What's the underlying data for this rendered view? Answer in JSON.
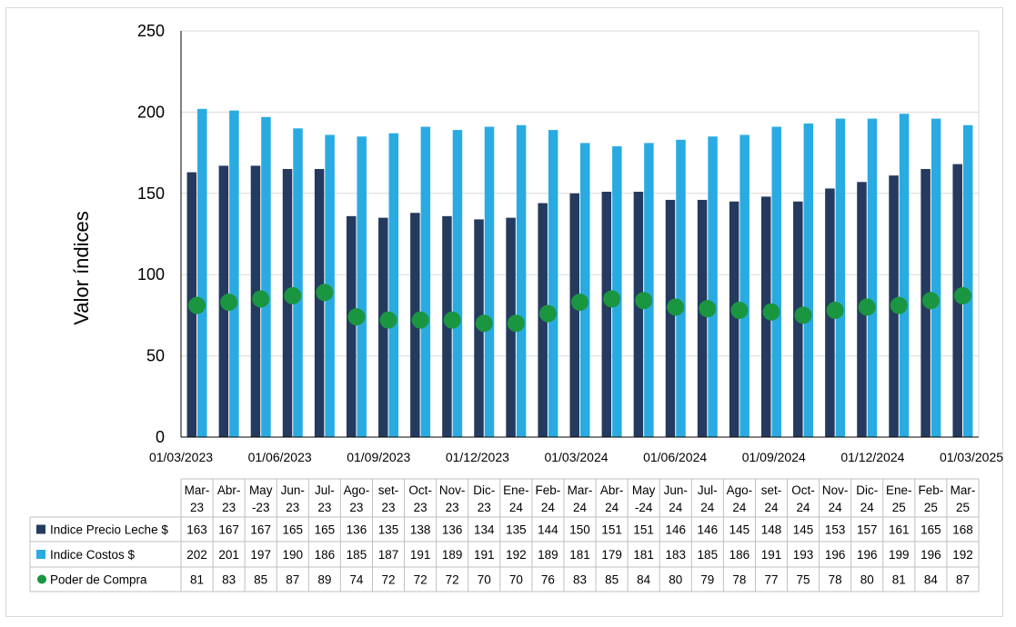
{
  "chart_data": {
    "type": "bar",
    "ylabel": "Valor índices",
    "ylim": [
      0,
      250
    ],
    "yticks": [
      0,
      50,
      100,
      150,
      200,
      250
    ],
    "grid": true,
    "date_axis_labels": [
      "01/03/2023",
      "01/06/2023",
      "01/09/2023",
      "01/12/2023",
      "01/03/2024",
      "01/06/2024",
      "01/09/2024",
      "01/12/2024",
      "01/03/2025"
    ],
    "categories": [
      [
        "Mar-",
        "23"
      ],
      [
        "Abr-",
        "23"
      ],
      [
        "May",
        "-23"
      ],
      [
        "Jun-",
        "23"
      ],
      [
        "Jul-",
        "23"
      ],
      [
        "Ago-",
        "23"
      ],
      [
        "set-",
        "23"
      ],
      [
        "Oct-",
        "23"
      ],
      [
        "Nov-",
        "23"
      ],
      [
        "Dic-",
        "23"
      ],
      [
        "Ene-",
        "24"
      ],
      [
        "Feb-",
        "24"
      ],
      [
        "Mar-",
        "24"
      ],
      [
        "Abr-",
        "24"
      ],
      [
        "May",
        "-24"
      ],
      [
        "Jun-",
        "24"
      ],
      [
        "Jul-",
        "24"
      ],
      [
        "Ago-",
        "24"
      ],
      [
        "set-",
        "24"
      ],
      [
        "Oct-",
        "24"
      ],
      [
        "Nov-",
        "24"
      ],
      [
        "Dic-",
        "24"
      ],
      [
        "Ene-",
        "25"
      ],
      [
        "Feb-",
        "25"
      ],
      [
        "Mar-",
        "25"
      ]
    ],
    "series": [
      {
        "name": "Indice Precio Leche $",
        "type": "bar",
        "color": "#243a5e",
        "values": [
          163,
          167,
          167,
          165,
          165,
          136,
          135,
          138,
          136,
          134,
          135,
          144,
          150,
          151,
          151,
          146,
          146,
          145,
          148,
          145,
          153,
          157,
          161,
          165,
          168
        ]
      },
      {
        "name": "Indice Costos $",
        "type": "bar",
        "color": "#29abe2",
        "values": [
          202,
          201,
          197,
          190,
          186,
          185,
          187,
          191,
          189,
          191,
          192,
          189,
          181,
          179,
          181,
          183,
          185,
          186,
          191,
          193,
          196,
          196,
          199,
          196,
          192
        ]
      },
      {
        "name": "Poder de Compra",
        "type": "dot",
        "color": "#1a9641",
        "values": [
          81,
          83,
          85,
          87,
          89,
          74,
          72,
          72,
          72,
          70,
          70,
          76,
          83,
          85,
          84,
          80,
          79,
          78,
          77,
          75,
          78,
          80,
          81,
          84,
          87
        ]
      }
    ]
  }
}
